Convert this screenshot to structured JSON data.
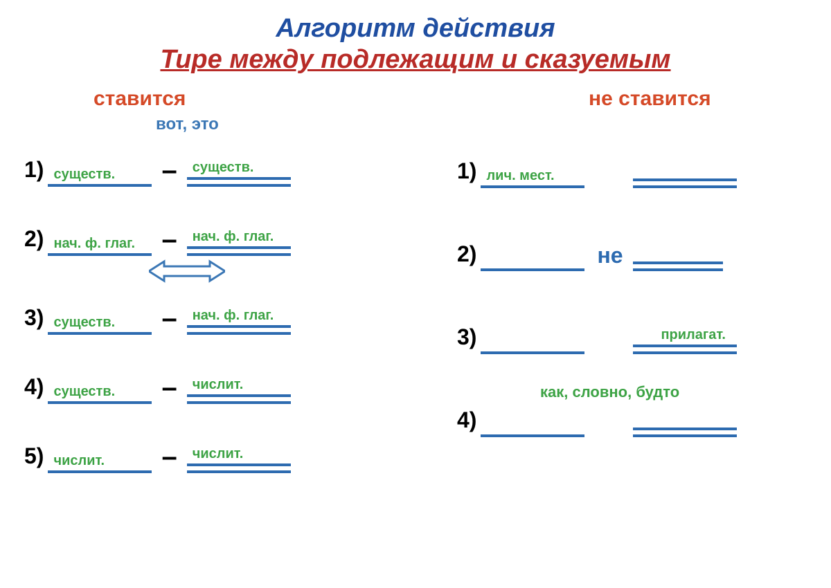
{
  "title_line1": "Алгоритм действия",
  "title_line2": "Тире между подлежащим и сказуемым",
  "colors": {
    "title1": "#1f4ea1",
    "title2": "#b82b27",
    "header": "#d54a28",
    "hint": "#3b77b5",
    "label_green": "#3da345",
    "line_blue": "#2d6bb0",
    "black": "#000000",
    "mid_word_blue": "#2d6bb0"
  },
  "left": {
    "header": "ставится",
    "hint": "вот, это",
    "rows": [
      {
        "num": "1)",
        "left_label": "существ.",
        "right_label": "существ.",
        "dash": "–",
        "lw": 150,
        "rw": 150
      },
      {
        "num": "2)",
        "left_label": "нач. ф. глаг.",
        "right_label": "нач. ф. глаг.",
        "dash": "–",
        "lw": 150,
        "rw": 150,
        "arrow": true
      },
      {
        "num": "3)",
        "left_label": "существ.",
        "right_label": "нач. ф. глаг.",
        "dash": "–",
        "lw": 150,
        "rw": 150
      },
      {
        "num": "4)",
        "left_label": "существ.",
        "right_label": "числит.",
        "dash": "–",
        "lw": 150,
        "rw": 150
      },
      {
        "num": "5)",
        "left_label": "числит.",
        "right_label": "числит.",
        "dash": "–",
        "lw": 150,
        "rw": 150
      }
    ]
  },
  "right": {
    "header": "не ставится",
    "rows": [
      {
        "num": "1)",
        "left_label": "лич. мест.",
        "mid": "",
        "lw": 150,
        "rw": 150
      },
      {
        "num": "2)",
        "left_label": "",
        "mid": "не",
        "lw": 150,
        "rw": 130
      },
      {
        "num": "3)",
        "right_label": "прилагат.",
        "right_label_above": true,
        "mid": "",
        "lw": 150,
        "rw": 150
      },
      {
        "num": "4)",
        "top_label": "как, словно, будто",
        "mid": "",
        "lw": 150,
        "rw": 150
      }
    ]
  },
  "sizes": {
    "title_fontsize": 38,
    "header_fontsize": 30,
    "num_fontsize": 32,
    "label_fontsize": 20,
    "line_thickness": 4,
    "double_gap": 6
  },
  "arrow": {
    "width": 110,
    "height": 36,
    "stroke": "#3b77b5",
    "stroke_width": 3
  }
}
